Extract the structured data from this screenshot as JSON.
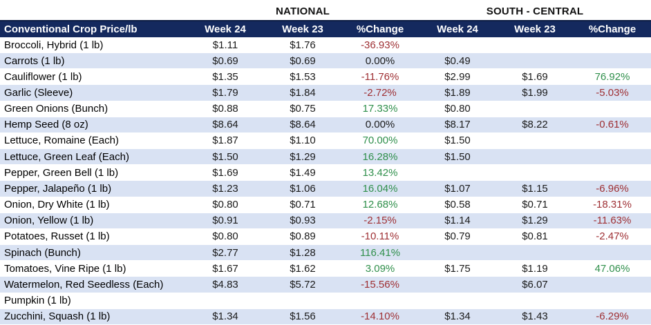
{
  "colors": {
    "header_bg": "#14295E",
    "header_border": "#0C1C42",
    "alt_row_bg": "#D9E2F3",
    "positive_text": "#2F8F4B",
    "negative_text": "#9E2F33",
    "neutral_text": "#1A1A1A"
  },
  "chart_data": {
    "type": "table",
    "title": "Conventional Crop Price/lb",
    "groups": [
      "NATIONAL",
      "SOUTH - CENTRAL"
    ],
    "columns": [
      "Conventional Crop Price/lb",
      "Week 24",
      "Week 23",
      "%Change",
      "Week 24",
      "Week 23",
      "%Change"
    ],
    "rows": [
      [
        "Broccoli, Hybrid (1 lb)",
        "$1.11",
        "$1.76",
        "-36.93%",
        "",
        "",
        ""
      ],
      [
        "Carrots (1 lb)",
        "$0.69",
        "$0.69",
        "0.00%",
        "$0.49",
        "",
        ""
      ],
      [
        "Cauliflower (1 lb)",
        "$1.35",
        "$1.53",
        "-11.76%",
        "$2.99",
        "$1.69",
        "76.92%"
      ],
      [
        "Garlic (Sleeve)",
        "$1.79",
        "$1.84",
        "-2.72%",
        "$1.89",
        "$1.99",
        "-5.03%"
      ],
      [
        "Green Onions (Bunch)",
        "$0.88",
        "$0.75",
        "17.33%",
        "$0.80",
        "",
        ""
      ],
      [
        "Hemp Seed (8 oz)",
        "$8.64",
        "$8.64",
        "0.00%",
        "$8.17",
        "$8.22",
        "-0.61%"
      ],
      [
        "Lettuce, Romaine (Each)",
        "$1.87",
        "$1.10",
        "70.00%",
        "$1.50",
        "",
        ""
      ],
      [
        "Lettuce, Green Leaf (Each)",
        "$1.50",
        "$1.29",
        "16.28%",
        "$1.50",
        "",
        ""
      ],
      [
        "Pepper, Green Bell (1 lb)",
        "$1.69",
        "$1.49",
        "13.42%",
        "",
        "",
        ""
      ],
      [
        "Pepper, Jalapeño (1 lb)",
        "$1.23",
        "$1.06",
        "16.04%",
        "$1.07",
        "$1.15",
        "-6.96%"
      ],
      [
        "Onion, Dry White (1 lb)",
        "$0.80",
        "$0.71",
        "12.68%",
        "$0.58",
        "$0.71",
        "-18.31%"
      ],
      [
        "Onion, Yellow (1 lb)",
        "$0.91",
        "$0.93",
        "-2.15%",
        "$1.14",
        "$1.29",
        "-11.63%"
      ],
      [
        "Potatoes, Russet (1 lb)",
        "$0.80",
        "$0.89",
        "-10.11%",
        "$0.79",
        "$0.81",
        "-2.47%"
      ],
      [
        "Spinach (Bunch)",
        "$2.77",
        "$1.28",
        "116.41%",
        "",
        "",
        ""
      ],
      [
        "Tomatoes, Vine Ripe (1 lb)",
        "$1.67",
        "$1.62",
        "3.09%",
        "$1.75",
        "$1.19",
        "47.06%"
      ],
      [
        "Watermelon, Red Seedless (Each)",
        "$4.83",
        "$5.72",
        "-15.56%",
        "",
        "$6.07",
        ""
      ],
      [
        "Pumpkin (1 lb)",
        "",
        "",
        "",
        "",
        "",
        ""
      ],
      [
        "Zucchini, Squash (1 lb)",
        "$1.34",
        "$1.56",
        "-14.10%",
        "$1.34",
        "$1.43",
        "-6.29%"
      ]
    ]
  }
}
